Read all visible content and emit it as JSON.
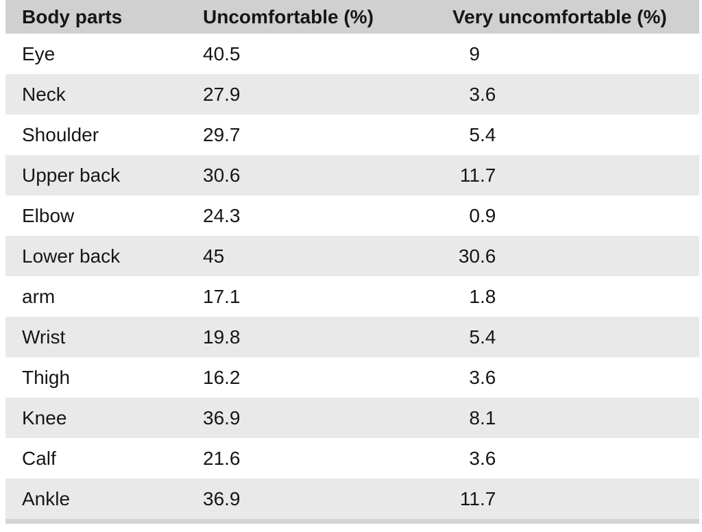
{
  "colors": {
    "header_bg": "#d0d0d0",
    "stripe_bg": "#e9e9e9",
    "text": "#161616",
    "partial_row_bg": "#d3d3d3",
    "page_bg": "#ffffff"
  },
  "table": {
    "columns": [
      {
        "label": "Body parts"
      },
      {
        "label": "Uncomfortable (%)"
      },
      {
        "label": "Very uncomfortable (%)"
      }
    ],
    "rows": [
      {
        "body_part": "Eye",
        "uncomfortable": "40.5",
        "very_uncomfortable": "9"
      },
      {
        "body_part": "Neck",
        "uncomfortable": "27.9",
        "very_uncomfortable": "3.6"
      },
      {
        "body_part": "Shoulder",
        "uncomfortable": "29.7",
        "very_uncomfortable": "5.4"
      },
      {
        "body_part": "Upper back",
        "uncomfortable": "30.6",
        "very_uncomfortable": "11.7"
      },
      {
        "body_part": "Elbow",
        "uncomfortable": "24.3",
        "very_uncomfortable": "0.9"
      },
      {
        "body_part": "Lower back",
        "uncomfortable": "45",
        "very_uncomfortable": "30.6"
      },
      {
        "body_part": "arm",
        "uncomfortable": "17.1",
        "very_uncomfortable": "1.8"
      },
      {
        "body_part": "Wrist",
        "uncomfortable": "19.8",
        "very_uncomfortable": "5.4"
      },
      {
        "body_part": "Thigh",
        "uncomfortable": "16.2",
        "very_uncomfortable": "3.6"
      },
      {
        "body_part": "Knee",
        "uncomfortable": "36.9",
        "very_uncomfortable": "8.1"
      },
      {
        "body_part": "Calf",
        "uncomfortable": "21.6",
        "very_uncomfortable": "3.6"
      },
      {
        "body_part": "Ankle",
        "uncomfortable": "36.9",
        "very_uncomfortable": "11.7"
      }
    ]
  },
  "chart_data": {
    "type": "table",
    "categories": [
      "Eye",
      "Neck",
      "Shoulder",
      "Upper back",
      "Elbow",
      "Lower back",
      "arm",
      "Wrist",
      "Thigh",
      "Knee",
      "Calf",
      "Ankle"
    ],
    "series": [
      {
        "name": "Uncomfortable (%)",
        "values": [
          40.5,
          27.9,
          29.7,
          30.6,
          24.3,
          45,
          17.1,
          19.8,
          16.2,
          36.9,
          21.6,
          36.9
        ]
      },
      {
        "name": "Very uncomfortable (%)",
        "values": [
          9,
          3.6,
          5.4,
          11.7,
          0.9,
          30.6,
          1.8,
          5.4,
          3.6,
          8.1,
          3.6,
          11.7
        ]
      }
    ],
    "layout": {
      "striped_rows": true,
      "header_background": "#d0d0d0",
      "stripe_background": "#e9e9e9"
    }
  }
}
